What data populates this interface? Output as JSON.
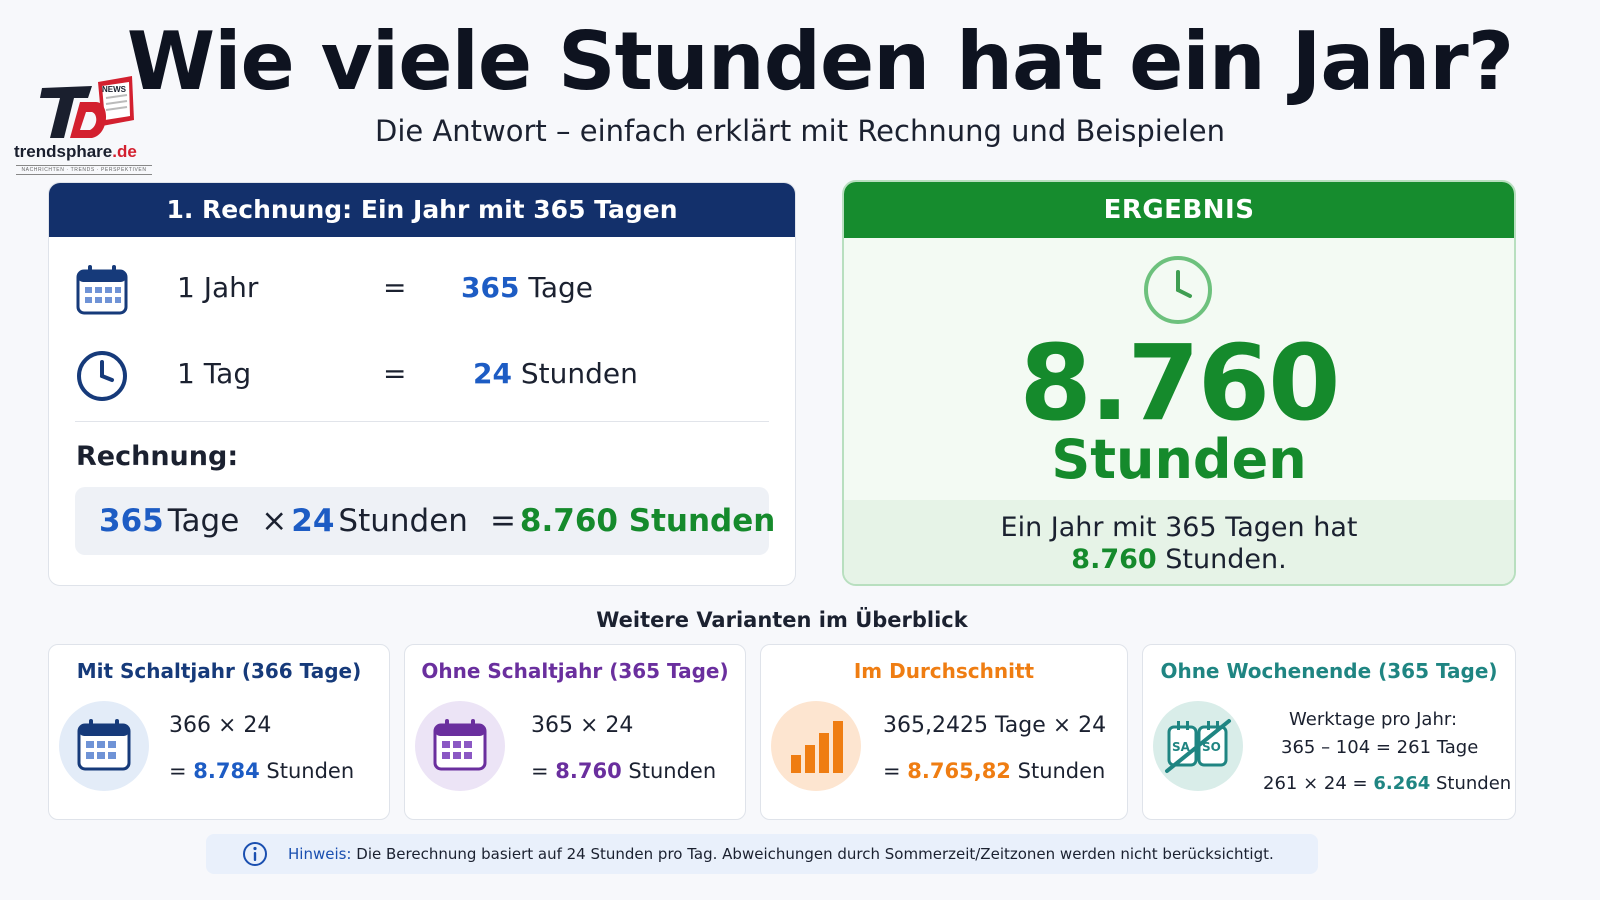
{
  "logo": {
    "badge": "NEWS",
    "name_main": "trendsphare",
    "name_tld": ".de",
    "tagline": "NACHRICHTEN · TRENDS · PERSPEKTIVEN"
  },
  "header": {
    "title": "Wie viele Stunden hat ein Jahr?",
    "subtitle": "Die Antwort – einfach erklärt mit Rechnung und Beispielen"
  },
  "calculation": {
    "heading": "1. Rechnung: Ein Jahr mit 365 Tagen",
    "rows": [
      {
        "left": "1 Jahr",
        "equals": "=",
        "value": "365",
        "unit": "Tage"
      },
      {
        "left": "1 Tag",
        "equals": "=",
        "value": "24",
        "unit": "Stunden"
      }
    ],
    "formula_label": "Rechnung:",
    "formula": {
      "a_value": "365",
      "a_unit": "Tage",
      "times": "×",
      "b_value": "24",
      "b_unit": "Stunden",
      "equals": "=",
      "result": "8.760 Stunden"
    }
  },
  "result": {
    "heading": "ERGEBNIS",
    "number": "8.760",
    "unit": "Stunden",
    "note_line1": "Ein Jahr mit 365 Tagen hat",
    "note_value": "8.760",
    "note_rest": "Stunden."
  },
  "variants": {
    "title": "Weitere Varianten im Überblick",
    "items": [
      {
        "title": "Mit Schaltjahr (366 Tage)",
        "line1": "366 × 24",
        "prefix": "=",
        "value": "8.784",
        "unit": "Stunden",
        "color": "#163a7a"
      },
      {
        "title": "Ohne Schaltjahr (365 Tage)",
        "line1": "365 × 24",
        "prefix": "=",
        "value": "8.760",
        "unit": "Stunden",
        "color": "#6a2f9e"
      },
      {
        "title": "Im Durchschnitt",
        "line1": "365,2425 Tage × 24",
        "prefix": "=",
        "value": "8.765,82",
        "unit": "Stunden",
        "color": "#ef7d12"
      },
      {
        "title": "Ohne Wochenende (365 Tage)",
        "line1": "Werktage pro Jahr:",
        "line2": "365 – 104 = 261 Tage",
        "line3_prefix": "261 × 24 =",
        "value": "6.264",
        "unit": "Stunden",
        "badge_left": "SA",
        "badge_right": "SO",
        "color": "#1f8582"
      }
    ]
  },
  "hint": {
    "label": "Hinweis:",
    "text": "Die Berechnung basiert auf 24 Stunden pro Tag. Abweichungen durch Sommerzeit/Zeitzonen werden nicht berücksichtigt."
  },
  "colors": {
    "navy": "#13306b",
    "green": "#168c2e",
    "blue": "#1d5cc4",
    "purple": "#6a2f9e",
    "orange": "#ef7d12",
    "teal": "#1f8582"
  },
  "icons": [
    "calendar-icon",
    "clock-icon",
    "bar-chart-icon",
    "weekend-crossed-icon",
    "info-icon",
    "logo-icon"
  ]
}
